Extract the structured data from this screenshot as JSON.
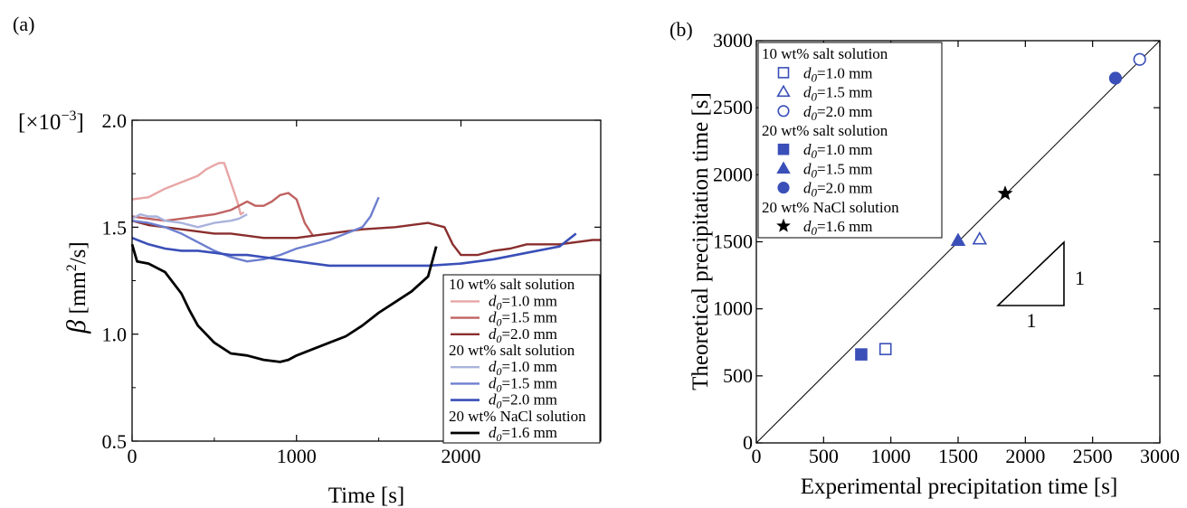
{
  "chart_data": [
    {
      "panel_label": "(a)",
      "type": "line",
      "xlabel": "Time [s]",
      "ylabel_symbol": "β",
      "ylabel_unit_open": " [mm",
      "ylabel_unit_sup": "2",
      "ylabel_unit_close": "/s]",
      "multiplier_open": "[×10",
      "multiplier_sup": "−3",
      "multiplier_close": "]",
      "xlim": [
        0,
        2850
      ],
      "ylim": [
        0.5,
        2.0
      ],
      "xticks": [
        0,
        1000,
        2000
      ],
      "xtick_labels": [
        "0",
        "1000",
        "2000"
      ],
      "yticks": [
        0.5,
        1.0,
        1.5,
        2.0
      ],
      "ytick_labels": [
        "0.5",
        "1.0",
        "1.5",
        "2.0"
      ],
      "grid": false,
      "legend_position": "bottom-right",
      "legend": [
        {
          "kind": "header",
          "text": "10 wt% salt solution"
        },
        {
          "kind": "entry",
          "sub": "0",
          "text": "=1.0 mm",
          "series": 0
        },
        {
          "kind": "entry",
          "sub": "0",
          "text": "=1.5 mm",
          "series": 1
        },
        {
          "kind": "entry",
          "sub": "0",
          "text": "=2.0 mm",
          "series": 2
        },
        {
          "kind": "header",
          "text": "20 wt% salt solution"
        },
        {
          "kind": "entry",
          "sub": "0",
          "text": "=1.0 mm",
          "series": 3
        },
        {
          "kind": "entry",
          "sub": "0",
          "text": "=1.5 mm",
          "series": 4
        },
        {
          "kind": "entry",
          "sub": "0",
          "text": "=2.0 mm",
          "series": 5
        },
        {
          "kind": "header",
          "text": "20 wt% NaCl solution"
        },
        {
          "kind": "entry",
          "sub": "0",
          "text": "=1.6 mm",
          "series": 6
        }
      ],
      "series": [
        {
          "color": "#e8a6a6",
          "width": 2.4,
          "x": [
            0,
            100,
            200,
            300,
            400,
            450,
            500,
            530,
            560,
            600,
            640,
            660,
            680
          ],
          "y": [
            1.63,
            1.64,
            1.68,
            1.71,
            1.74,
            1.77,
            1.79,
            1.8,
            1.8,
            1.71,
            1.62,
            1.56,
            1.57
          ]
        },
        {
          "color": "#c06262",
          "width": 2.4,
          "x": [
            0,
            100,
            200,
            300,
            400,
            500,
            600,
            700,
            750,
            800,
            850,
            900,
            950,
            1000,
            1050,
            1100
          ],
          "y": [
            1.55,
            1.54,
            1.53,
            1.54,
            1.55,
            1.56,
            1.58,
            1.62,
            1.6,
            1.6,
            1.62,
            1.65,
            1.66,
            1.63,
            1.52,
            1.46
          ]
        },
        {
          "color": "#8a2e2e",
          "width": 2.4,
          "x": [
            0,
            100,
            200,
            300,
            400,
            500,
            600,
            800,
            1000,
            1200,
            1400,
            1600,
            1800,
            1900,
            1950,
            2000,
            2100,
            2200,
            2300,
            2400,
            2500,
            2600,
            2700,
            2800,
            2850
          ],
          "y": [
            1.53,
            1.51,
            1.5,
            1.49,
            1.48,
            1.47,
            1.47,
            1.45,
            1.45,
            1.47,
            1.49,
            1.5,
            1.52,
            1.5,
            1.42,
            1.37,
            1.37,
            1.39,
            1.4,
            1.42,
            1.42,
            1.42,
            1.43,
            1.44,
            1.44
          ]
        },
        {
          "color": "#a9b2dc",
          "width": 2.4,
          "x": [
            0,
            50,
            100,
            150,
            200,
            300,
            400,
            500,
            600,
            650,
            700
          ],
          "y": [
            1.54,
            1.56,
            1.55,
            1.55,
            1.53,
            1.52,
            1.5,
            1.52,
            1.53,
            1.54,
            1.56
          ]
        },
        {
          "color": "#6d7fcf",
          "width": 2.4,
          "x": [
            0,
            100,
            200,
            300,
            400,
            500,
            600,
            700,
            800,
            900,
            1000,
            1100,
            1200,
            1300,
            1400,
            1450,
            1500
          ],
          "y": [
            1.53,
            1.52,
            1.5,
            1.47,
            1.43,
            1.39,
            1.36,
            1.34,
            1.35,
            1.37,
            1.4,
            1.42,
            1.44,
            1.47,
            1.5,
            1.55,
            1.64
          ]
        },
        {
          "color": "#3a4fb8",
          "width": 2.6,
          "x": [
            0,
            100,
            200,
            300,
            400,
            500,
            600,
            700,
            800,
            1000,
            1200,
            1400,
            1600,
            1800,
            2000,
            2200,
            2400,
            2600,
            2700
          ],
          "y": [
            1.45,
            1.42,
            1.4,
            1.39,
            1.39,
            1.38,
            1.37,
            1.37,
            1.36,
            1.34,
            1.32,
            1.32,
            1.32,
            1.32,
            1.33,
            1.35,
            1.38,
            1.41,
            1.47
          ]
        },
        {
          "color": "#000000",
          "width": 2.8,
          "x": [
            0,
            30,
            100,
            200,
            300,
            350,
            400,
            500,
            600,
            700,
            800,
            900,
            950,
            1000,
            1100,
            1200,
            1300,
            1400,
            1500,
            1600,
            1700,
            1800,
            1850
          ],
          "y": [
            1.42,
            1.34,
            1.33,
            1.29,
            1.19,
            1.11,
            1.04,
            0.96,
            0.91,
            0.9,
            0.88,
            0.87,
            0.88,
            0.9,
            0.93,
            0.96,
            0.99,
            1.04,
            1.1,
            1.15,
            1.2,
            1.27,
            1.41
          ]
        }
      ]
    },
    {
      "panel_label": "(b)",
      "type": "scatter",
      "xlabel": "Experimental precipitation time [s]",
      "ylabel": "Theoretical precipitation time [s]",
      "xlim": [
        0,
        3000
      ],
      "ylim": [
        0,
        3000
      ],
      "xticks": [
        0,
        500,
        1000,
        1500,
        2000,
        2500,
        3000
      ],
      "xtick_labels": [
        "0",
        "500",
        "1000",
        "1500",
        "2000",
        "2500",
        "3000"
      ],
      "yticks": [
        0,
        500,
        1000,
        1500,
        2000,
        2500,
        3000
      ],
      "ytick_labels": [
        "0",
        "500",
        "1000",
        "1500",
        "2000",
        "2500",
        "3000"
      ],
      "grid": false,
      "legend_position": "top-left",
      "reference_line": {
        "slope": 1,
        "from": [
          0,
          0
        ],
        "to": [
          3000,
          3000
        ]
      },
      "slope_triangle": {
        "vertical_label": "1",
        "horizontal_label": "1"
      },
      "legend": [
        {
          "kind": "header",
          "text": "10 wt% salt solution"
        },
        {
          "kind": "entry",
          "sub": "0",
          "text": "=1.0 mm",
          "series": 0
        },
        {
          "kind": "entry",
          "sub": "0",
          "text": "=1.5 mm",
          "series": 1
        },
        {
          "kind": "entry",
          "sub": "0",
          "text": "=2.0 mm",
          "series": 2
        },
        {
          "kind": "header",
          "text": "20 wt% salt solution"
        },
        {
          "kind": "entry",
          "sub": "0",
          "text": "=1.0 mm",
          "series": 3
        },
        {
          "kind": "entry",
          "sub": "0",
          "text": "=1.5 mm",
          "series": 4
        },
        {
          "kind": "entry",
          "sub": "0",
          "text": "=2.0 mm",
          "series": 5
        },
        {
          "kind": "header",
          "text": "20 wt% NaCl solution"
        },
        {
          "kind": "entry",
          "sub": "0",
          "text": "=1.6 mm",
          "series": 6
        }
      ],
      "series": [
        {
          "marker": "square",
          "filled": false,
          "color": "#3a4fb8",
          "x": 960,
          "y": 700
        },
        {
          "marker": "triangle",
          "filled": false,
          "color": "#3a4fb8",
          "x": 1660,
          "y": 1520
        },
        {
          "marker": "circle",
          "filled": false,
          "color": "#3a4fb8",
          "x": 2850,
          "y": 2860
        },
        {
          "marker": "square",
          "filled": true,
          "color": "#3a4fb8",
          "x": 780,
          "y": 660
        },
        {
          "marker": "triangle",
          "filled": true,
          "color": "#3a4fb8",
          "x": 1500,
          "y": 1510
        },
        {
          "marker": "circle",
          "filled": true,
          "color": "#3a4fb8",
          "x": 2670,
          "y": 2720
        },
        {
          "marker": "star",
          "filled": true,
          "color": "#000000",
          "x": 1850,
          "y": 1860
        }
      ]
    }
  ]
}
